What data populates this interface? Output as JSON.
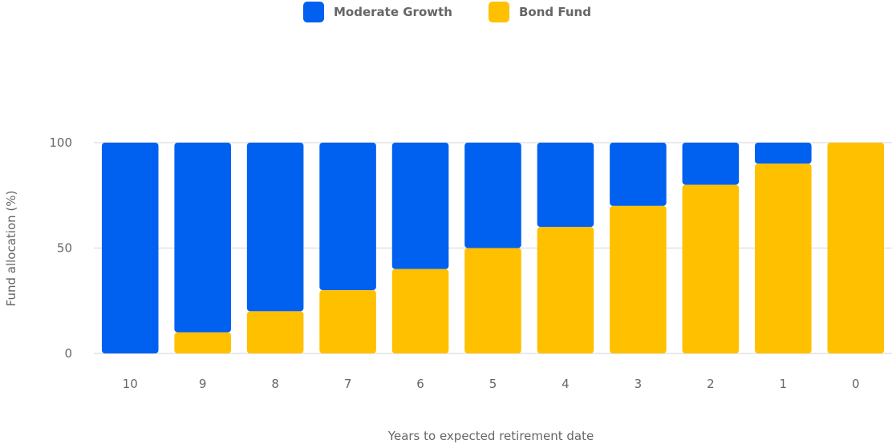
{
  "colors": {
    "series_a": "#0060f0",
    "series_b": "#ffc000",
    "grid": "#d6d6d6",
    "text": "#666666"
  },
  "chart_data": {
    "type": "bar",
    "stacked": true,
    "categories": [
      "10",
      "9",
      "8",
      "7",
      "6",
      "5",
      "4",
      "3",
      "2",
      "1",
      "0"
    ],
    "series": [
      {
        "name": "Moderate Growth",
        "values": [
          100,
          90,
          80,
          70,
          60,
          50,
          40,
          30,
          20,
          10,
          0
        ]
      },
      {
        "name": "Bond Fund",
        "values": [
          0,
          10,
          20,
          30,
          40,
          50,
          60,
          70,
          80,
          90,
          100
        ]
      }
    ],
    "xlabel": "Years to expected retirement date",
    "ylabel": "Fund allocation (%)",
    "ylim": [
      0,
      100
    ],
    "yticks": [
      "0",
      "50",
      "100"
    ],
    "grid": true,
    "legend": "top-center"
  }
}
